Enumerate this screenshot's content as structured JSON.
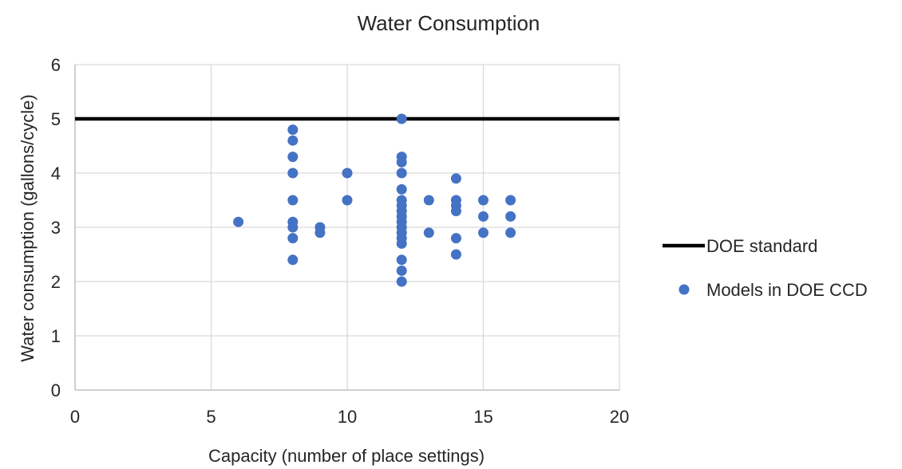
{
  "chart_data": {
    "type": "scatter",
    "title": "Water Consumption",
    "xlabel": "Capacity (number of place settings)",
    "ylabel": "Water consumption (gallons/cycle)",
    "xlim": [
      0,
      20
    ],
    "ylim": [
      0,
      6
    ],
    "xticks": [
      0,
      5,
      10,
      15,
      20
    ],
    "yticks": [
      0,
      1,
      2,
      3,
      4,
      5,
      6
    ],
    "grid": true,
    "legend_position": "right",
    "series": [
      {
        "name": "DOE standard",
        "kind": "line",
        "color": "#000000",
        "x": [
          0,
          20
        ],
        "y": [
          5,
          5
        ]
      },
      {
        "name": "Models in DOE CCD",
        "kind": "scatter",
        "color": "#4472C4",
        "points": [
          [
            6,
            3.1
          ],
          [
            8,
            4.8
          ],
          [
            8,
            4.6
          ],
          [
            8,
            4.3
          ],
          [
            8,
            4.0
          ],
          [
            8,
            3.5
          ],
          [
            8,
            3.1
          ],
          [
            8,
            3.0
          ],
          [
            8,
            2.8
          ],
          [
            8,
            2.4
          ],
          [
            9,
            3.0
          ],
          [
            9,
            2.9
          ],
          [
            10,
            4.0
          ],
          [
            10,
            3.5
          ],
          [
            12,
            5.0
          ],
          [
            12,
            4.3
          ],
          [
            12,
            4.2
          ],
          [
            12,
            4.0
          ],
          [
            12,
            3.7
          ],
          [
            12,
            3.5
          ],
          [
            12,
            3.4
          ],
          [
            12,
            3.3
          ],
          [
            12,
            3.2
          ],
          [
            12,
            3.1
          ],
          [
            12,
            3.0
          ],
          [
            12,
            2.9
          ],
          [
            12,
            2.8
          ],
          [
            12,
            2.7
          ],
          [
            12,
            2.4
          ],
          [
            12,
            2.2
          ],
          [
            12,
            2.0
          ],
          [
            13,
            3.5
          ],
          [
            13,
            2.9
          ],
          [
            14,
            3.9
          ],
          [
            14,
            3.5
          ],
          [
            14,
            3.4
          ],
          [
            14,
            3.3
          ],
          [
            14,
            2.8
          ],
          [
            14,
            2.5
          ],
          [
            15,
            3.5
          ],
          [
            15,
            3.2
          ],
          [
            15,
            2.9
          ],
          [
            16,
            3.5
          ],
          [
            16,
            3.2
          ],
          [
            16,
            2.9
          ]
        ]
      }
    ]
  }
}
